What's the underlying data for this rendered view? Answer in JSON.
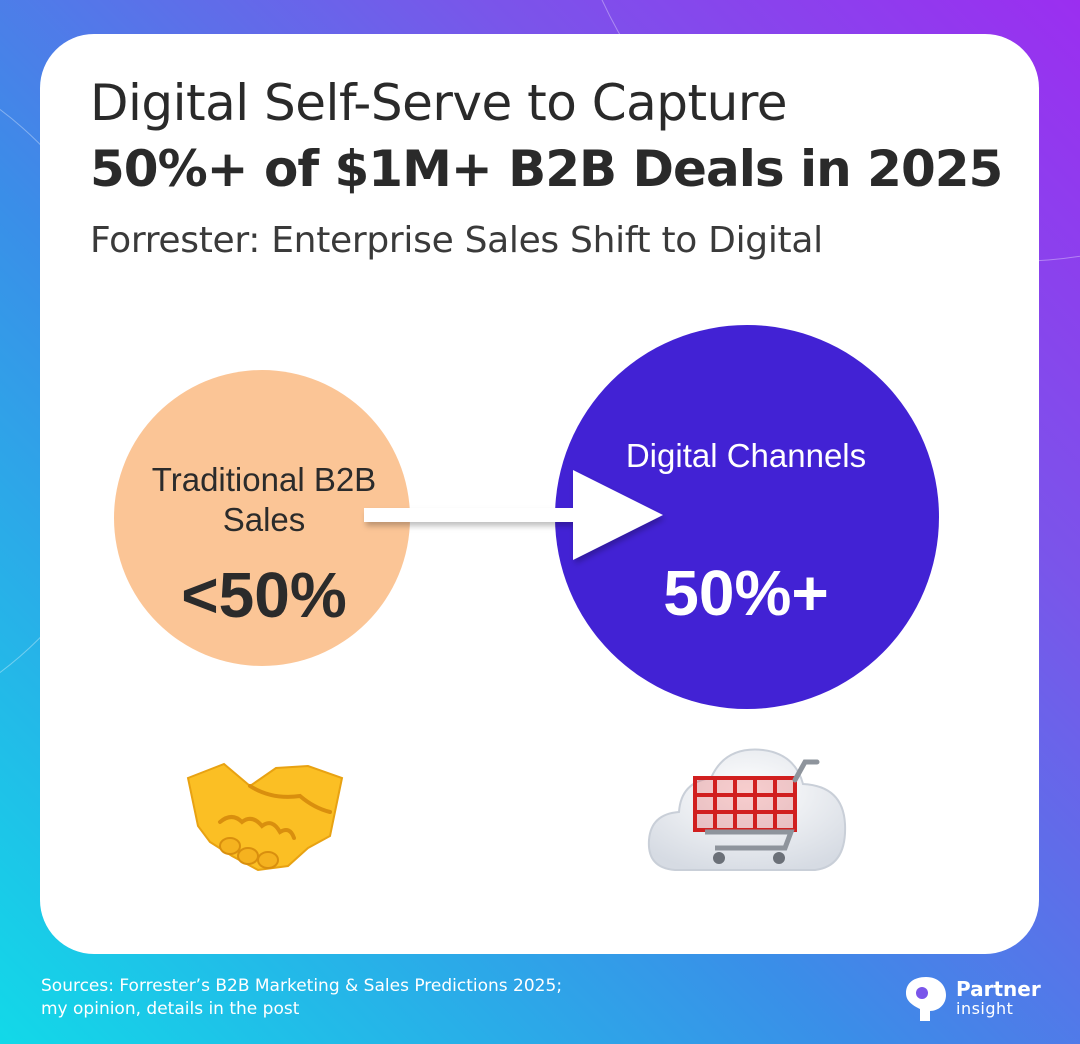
{
  "header": {
    "title_line1": "Digital Self-Serve to Capture",
    "title_line2": "50%+ of $1M+ B2B Deals in 2025",
    "subtitle": "Forrester: Enterprise Sales Shift to Digital"
  },
  "diagram": {
    "left": {
      "label": "Traditional B2B Sales",
      "value": "<50%",
      "color": "#fbc596",
      "icon": "handshake-icon"
    },
    "right": {
      "label": "Digital Channels",
      "value": "50%+",
      "color": "#4222d4",
      "icon": "shopping-cart-cloud-icon"
    }
  },
  "footer": {
    "sources_line1": "Sources: Forrester’s B2B Marketing & Sales Predictions 2025;",
    "sources_line2": "my opinion, details in the post"
  },
  "logo": {
    "name": "Partner",
    "sub": "insight"
  }
}
